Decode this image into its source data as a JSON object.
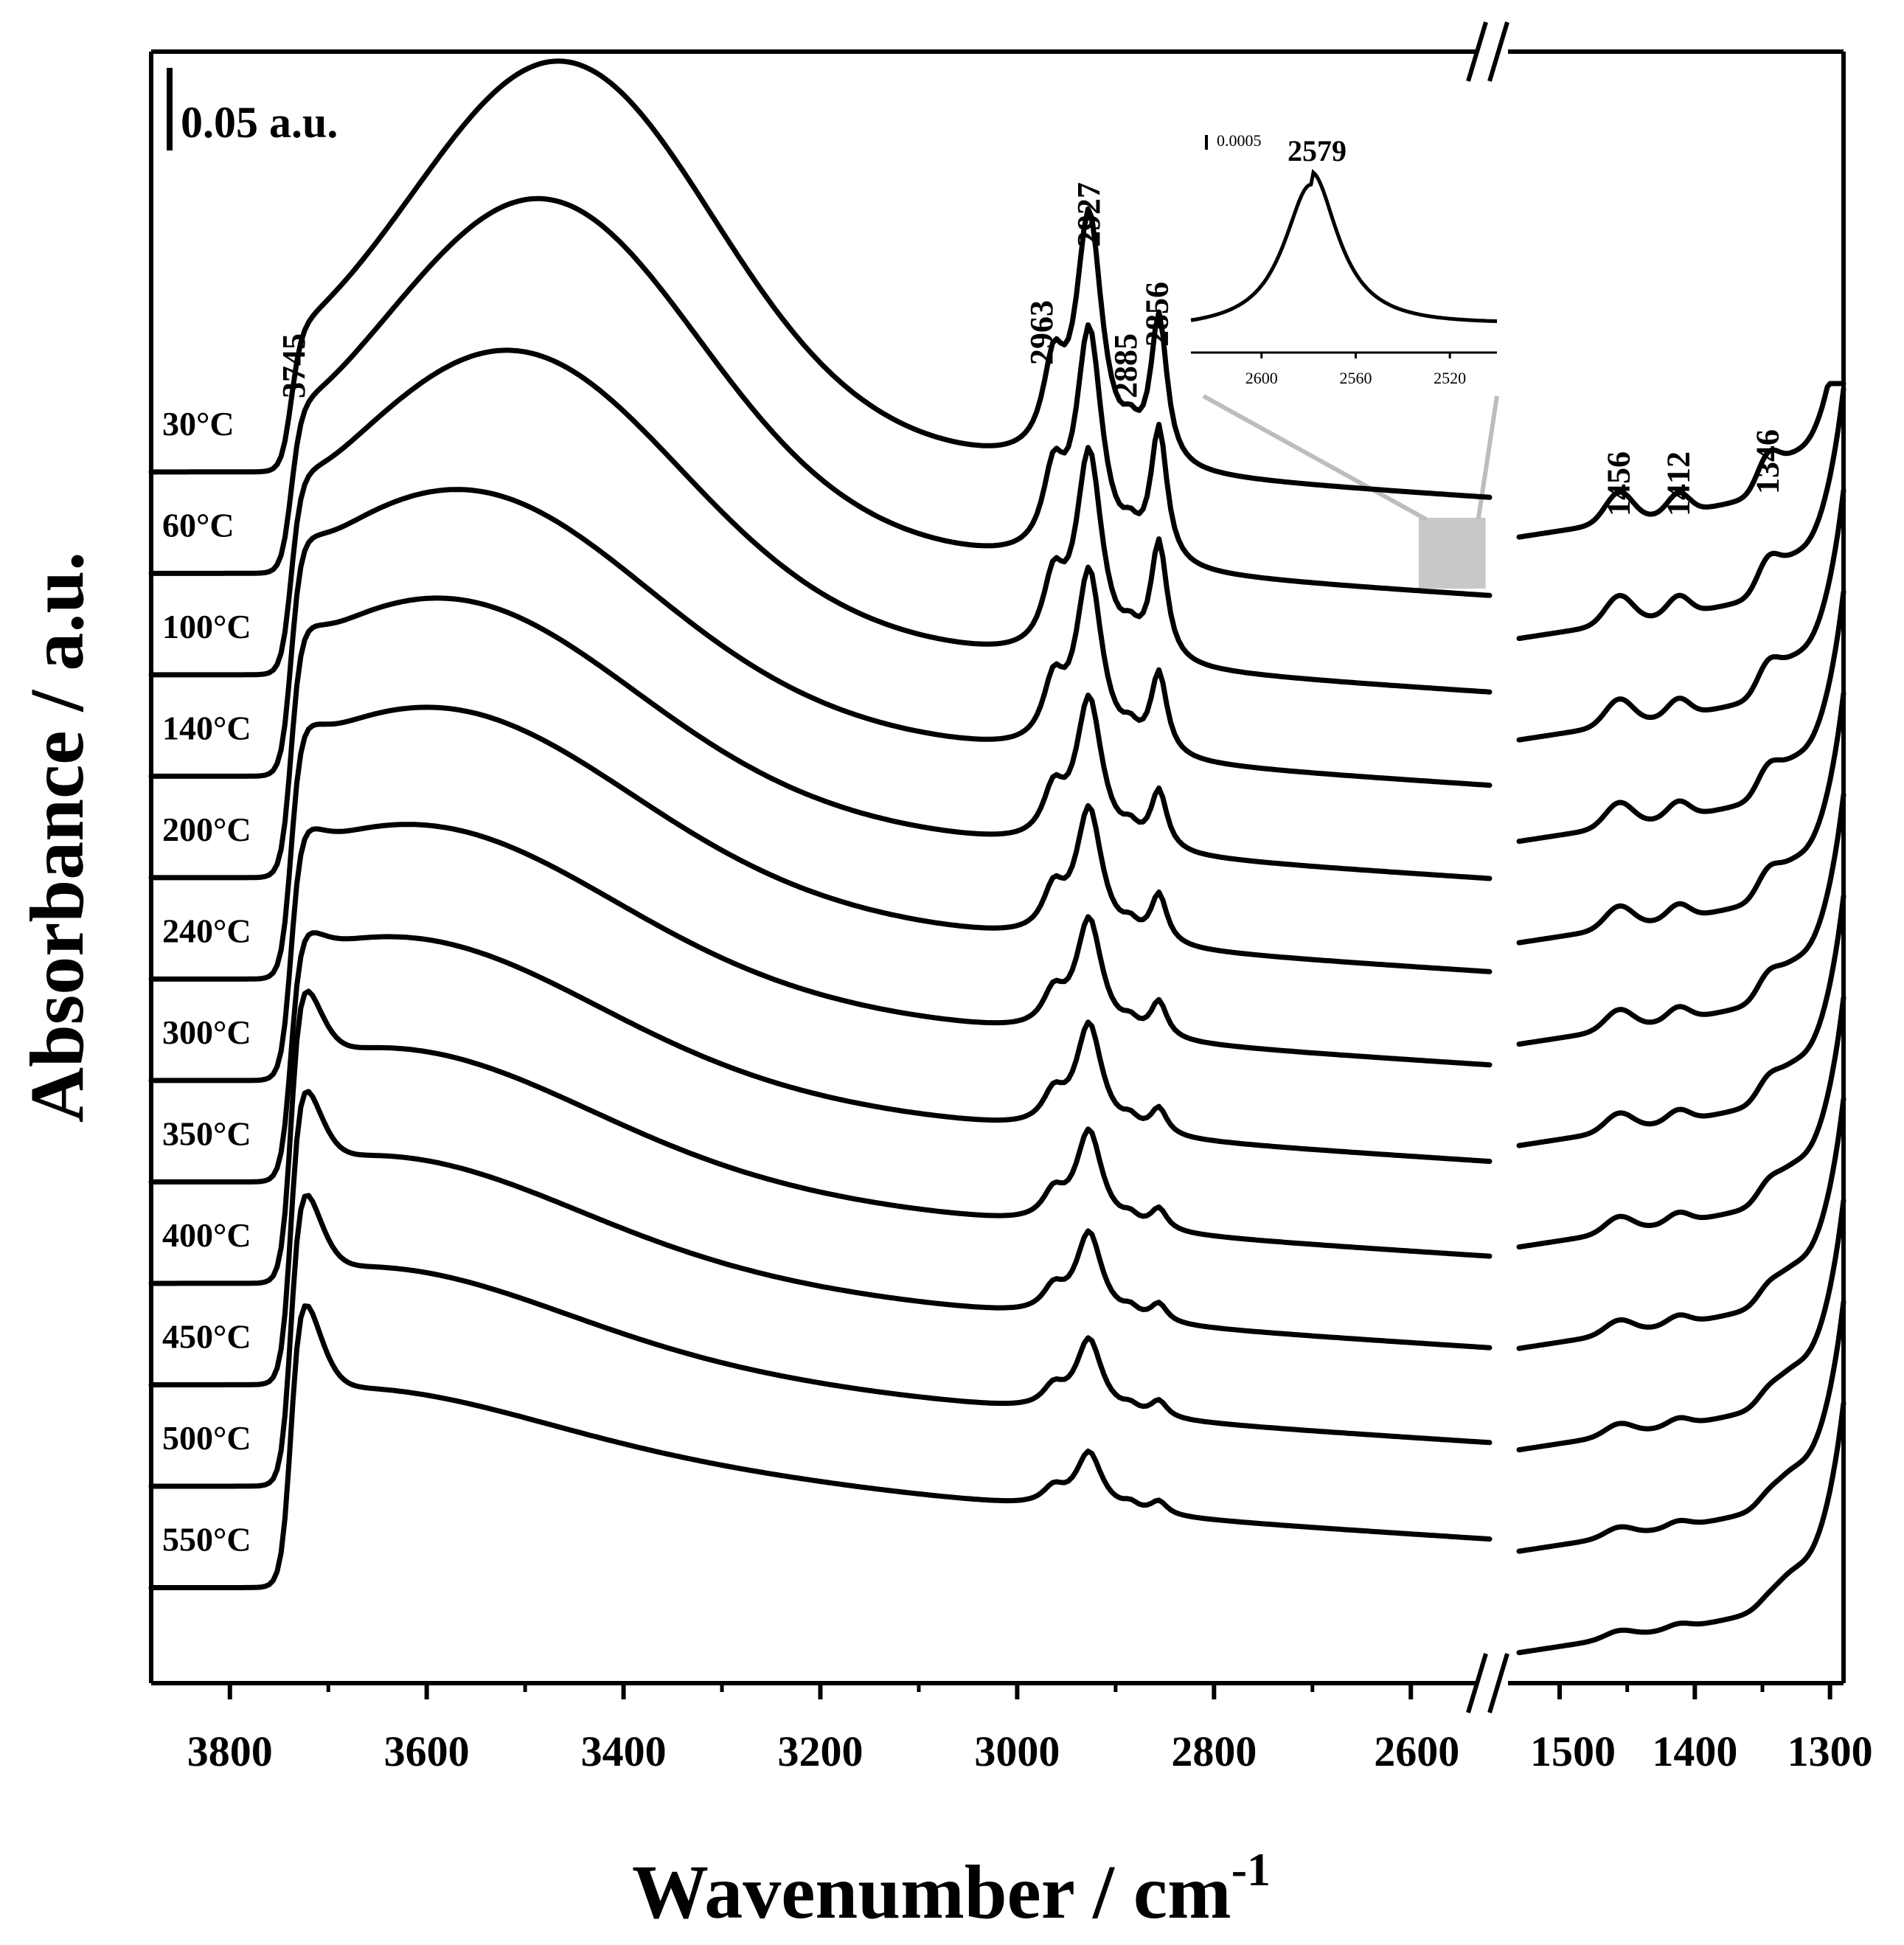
{
  "chart_data": {
    "type": "line",
    "title": "",
    "xlabel": "Wavenumber / cm",
    "xlabel_superscript": "-1",
    "ylabel": "Absorbance / a.u.",
    "scale_bar_label": "0.05 a.u.",
    "x_segments": [
      {
        "xlim": [
          3880,
          2520
        ],
        "ticks": [
          3800,
          3600,
          3400,
          3200,
          3000,
          2800,
          2600
        ]
      },
      {
        "xlim": [
          1530,
          1290
        ],
        "ticks": [
          1500,
          1400,
          1300
        ]
      }
    ],
    "series_note": "Stacked in-situ FTIR spectra, offset vertically (top = 30°C, bottom = 550°C); y values in a.u. above each trace baseline",
    "series": [
      {
        "name": "30°C",
        "hump": 0.21,
        "hump_center": 3460,
        "hump_width": 150,
        "oh_step": 0.03,
        "p2927": 0.15,
        "p2963": 0.05,
        "p2856": 0.09,
        "p2885": 0.012
      },
      {
        "name": "60°C",
        "hump": 0.185,
        "hump_center": 3480,
        "hump_width": 155,
        "oh_step": 0.032,
        "p2927": 0.14,
        "p2963": 0.045,
        "p2856": 0.082,
        "p2885": 0.011
      },
      {
        "name": "100°C",
        "hump": 0.15,
        "hump_center": 3510,
        "hump_width": 165,
        "oh_step": 0.035,
        "p2927": 0.125,
        "p2963": 0.04,
        "p2856": 0.072,
        "p2885": 0.01
      },
      {
        "name": "140°C",
        "hump": 0.12,
        "hump_center": 3560,
        "hump_width": 180,
        "oh_step": 0.04,
        "p2927": 0.11,
        "p2963": 0.035,
        "p2856": 0.05,
        "p2885": 0.009
      },
      {
        "name": "200°C",
        "hump": 0.11,
        "hump_center": 3580,
        "hump_width": 185,
        "oh_step": 0.045,
        "p2927": 0.09,
        "p2963": 0.028,
        "p2856": 0.036,
        "p2885": 0.008
      },
      {
        "name": "240°C",
        "hump": 0.1,
        "hump_center": 3590,
        "hump_width": 190,
        "oh_step": 0.05,
        "p2927": 0.08,
        "p2963": 0.025,
        "p2856": 0.03,
        "p2885": 0.007
      },
      {
        "name": "300°C",
        "hump": 0.085,
        "hump_center": 3610,
        "hump_width": 190,
        "oh_step": 0.055,
        "p2927": 0.07,
        "p2963": 0.02,
        "p2856": 0.022,
        "p2885": 0.006
      },
      {
        "name": "350°C",
        "hump": 0.075,
        "hump_center": 3630,
        "hump_width": 190,
        "oh_step": 0.058,
        "p2927": 0.065,
        "p2963": 0.018,
        "p2856": 0.016,
        "p2885": 0.006
      },
      {
        "name": "400°C",
        "hump": 0.065,
        "hump_center": 3640,
        "hump_width": 190,
        "oh_step": 0.062,
        "p2927": 0.058,
        "p2963": 0.016,
        "p2856": 0.013,
        "p2885": 0.005
      },
      {
        "name": "450°C",
        "hump": 0.055,
        "hump_center": 3650,
        "hump_width": 185,
        "oh_step": 0.068,
        "p2927": 0.052,
        "p2963": 0.014,
        "p2856": 0.011,
        "p2885": 0.005
      },
      {
        "name": "500°C",
        "hump": 0.045,
        "hump_center": 3660,
        "hump_width": 180,
        "oh_step": 0.072,
        "p2927": 0.045,
        "p2963": 0.012,
        "p2856": 0.01,
        "p2885": 0.004
      },
      {
        "name": "550°C",
        "hump": 0.03,
        "hump_center": 3680,
        "hump_width": 170,
        "oh_step": 0.075,
        "p2927": 0.035,
        "p2963": 0.01,
        "p2856": 0.008,
        "p2885": 0.004
      }
    ],
    "peak_annotations": [
      "3745",
      "2963",
      "2927",
      "2885",
      "2856",
      "1456",
      "1412",
      "1346"
    ],
    "inset": {
      "scale_label": "0.0005",
      "peak_label": "2579",
      "xlim": [
        2630,
        2500
      ],
      "ticks": [
        2600,
        2560,
        2520
      ],
      "zoom_region_note": "magnified region of the 30°C spectrum"
    }
  }
}
